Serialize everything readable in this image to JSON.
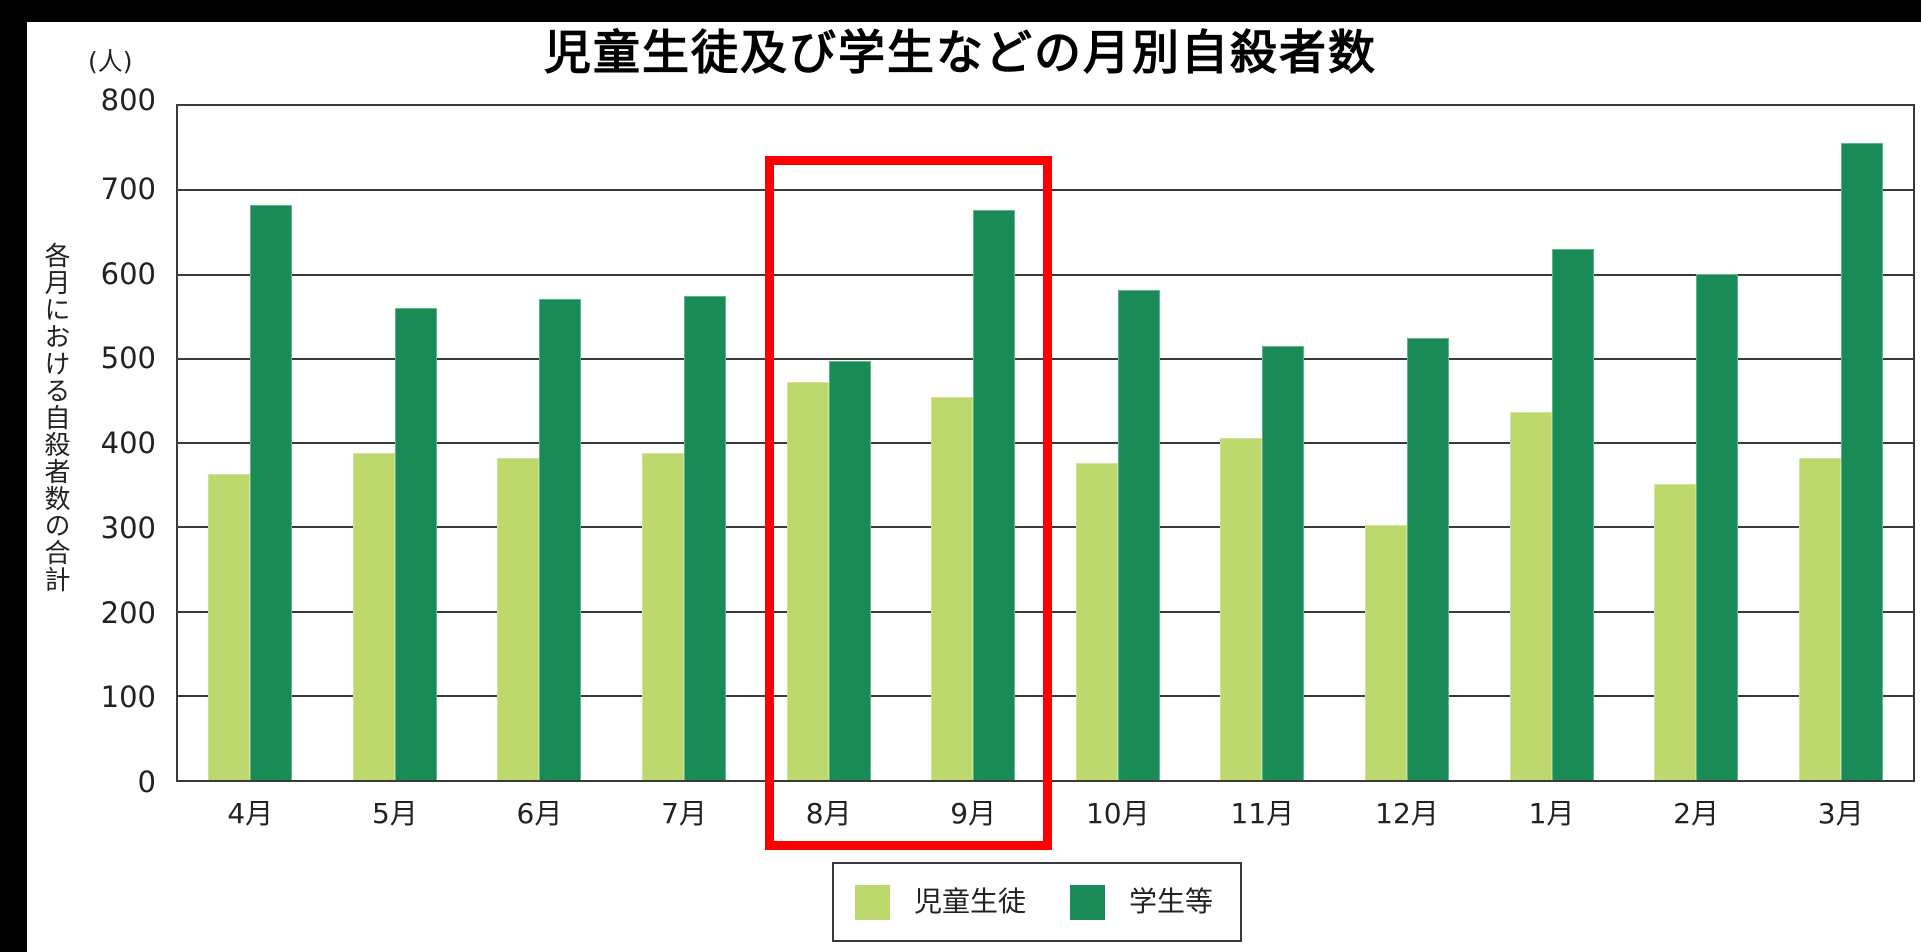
{
  "chart_data": {
    "type": "bar",
    "title": "児童生徒及び学生などの月別自殺者数",
    "xlabel": "",
    "ylabel": "各月における自殺者数の合計",
    "y_unit": "(人)",
    "ylim": [
      0,
      800
    ],
    "yticks": [
      0,
      100,
      200,
      300,
      400,
      500,
      600,
      700,
      800
    ],
    "grid": true,
    "legend_position": "bottom-center",
    "categories": [
      "4月",
      "5月",
      "6月",
      "7月",
      "8月",
      "9月",
      "10月",
      "11月",
      "12月",
      "1月",
      "2月",
      "3月"
    ],
    "series": [
      {
        "name": "児童生徒",
        "color": "#bdd96e",
        "values": [
          363,
          388,
          382,
          388,
          472,
          455,
          376,
          406,
          303,
          437,
          351,
          382
        ]
      },
      {
        "name": "学生等",
        "color": "#1a8a57",
        "values": [
          682,
          560,
          571,
          574,
          497,
          676,
          582,
          515,
          525,
          630,
          601,
          756
        ]
      }
    ],
    "annotations": [
      {
        "type": "highlight-box",
        "color": "#ff0000",
        "covers_categories": [
          "8月",
          "9月"
        ]
      }
    ]
  },
  "labels": {
    "title": "児童生徒及び学生などの月別自殺者数",
    "unit": "(人)",
    "ylabel": "各月における自殺者数の合計",
    "yticks": [
      "0",
      "100",
      "200",
      "300",
      "400",
      "500",
      "600",
      "700",
      "800"
    ],
    "xticks": [
      "4月",
      "5月",
      "6月",
      "7月",
      "8月",
      "9月",
      "10月",
      "11月",
      "12月",
      "1月",
      "2月",
      "3月"
    ],
    "legend": [
      "児童生徒",
      "学生等"
    ]
  }
}
